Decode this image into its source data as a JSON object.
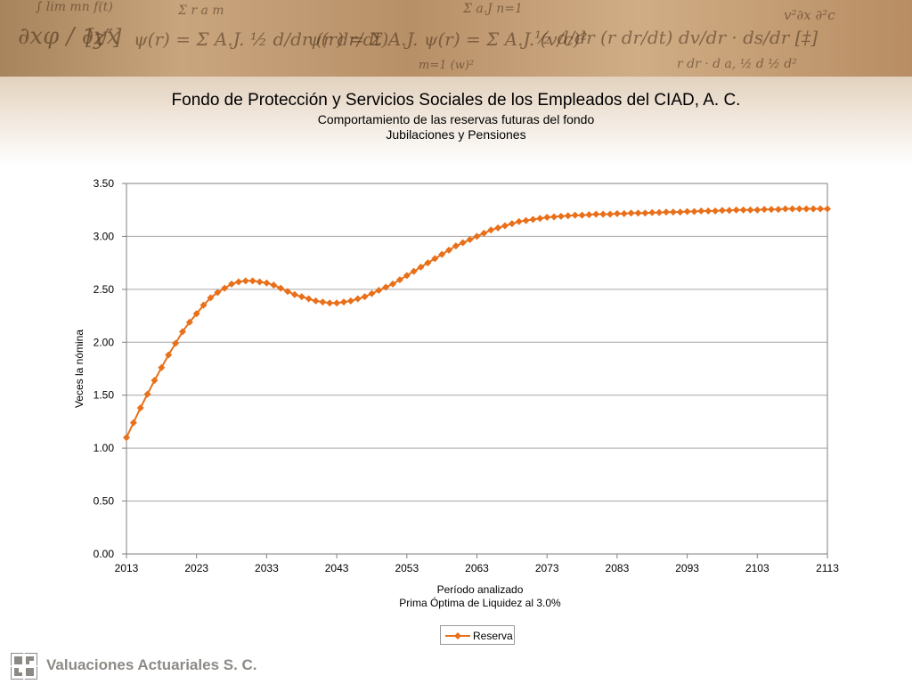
{
  "header": {
    "title": "Fondo de Protección y Servicios Sociales de los Empleados del CIAD, A. C.",
    "subtitle": "Comportamiento de las reservas futuras del fondo",
    "subtitle2": "Jubilaciones y Pensiones"
  },
  "colors": {
    "series": "#e8701a",
    "grid": "#a6a6a6",
    "axis": "#7f7f7f"
  },
  "footer": {
    "company": "Valuaciones Actuariales S. C."
  },
  "chart_data": {
    "type": "line",
    "ylabel": "Veces la nómina",
    "xlabel": "Período analizado",
    "xlabel2": "Prima Óptima de Liquidez al 3.0%",
    "xlim": [
      2013,
      2113
    ],
    "ylim": [
      0,
      3.5
    ],
    "x_ticks": [
      "2013",
      "2023",
      "2033",
      "2043",
      "2053",
      "2063",
      "2073",
      "2083",
      "2093",
      "2103",
      "2113"
    ],
    "y_ticks": [
      "0.00",
      "0.50",
      "1.00",
      "1.50",
      "2.00",
      "2.50",
      "3.00",
      "3.50"
    ],
    "grid": true,
    "legend_position": "bottom",
    "series": [
      {
        "name": "Reserva",
        "x_start": 2013,
        "x_step": 1,
        "values": [
          1.1,
          1.24,
          1.38,
          1.51,
          1.64,
          1.76,
          1.88,
          1.99,
          2.1,
          2.19,
          2.27,
          2.35,
          2.42,
          2.47,
          2.51,
          2.55,
          2.57,
          2.58,
          2.58,
          2.57,
          2.56,
          2.54,
          2.51,
          2.48,
          2.45,
          2.43,
          2.41,
          2.39,
          2.38,
          2.37,
          2.37,
          2.38,
          2.39,
          2.41,
          2.43,
          2.46,
          2.49,
          2.52,
          2.55,
          2.59,
          2.63,
          2.67,
          2.71,
          2.75,
          2.79,
          2.83,
          2.87,
          2.91,
          2.94,
          2.97,
          3.0,
          3.03,
          3.06,
          3.08,
          3.1,
          3.12,
          3.14,
          3.15,
          3.16,
          3.17,
          3.18,
          3.185,
          3.19,
          3.195,
          3.2,
          3.2,
          3.205,
          3.21,
          3.21,
          3.21,
          3.215,
          3.215,
          3.22,
          3.22,
          3.22,
          3.225,
          3.225,
          3.23,
          3.23,
          3.23,
          3.235,
          3.235,
          3.24,
          3.24,
          3.24,
          3.245,
          3.245,
          3.25,
          3.25,
          3.25,
          3.25,
          3.255,
          3.255,
          3.255,
          3.26,
          3.26,
          3.26,
          3.26,
          3.26,
          3.26,
          3.26
        ]
      }
    ]
  }
}
